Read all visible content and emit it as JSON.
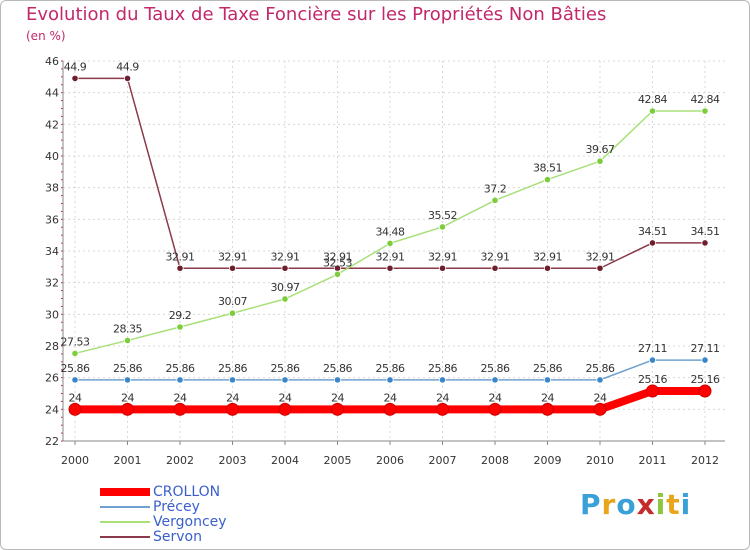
{
  "title": "Evolution du Taux de Taxe Foncière sur les Propriétés Non Bâties",
  "unit_label": "(en %)",
  "logo": {
    "text": "Proxiti",
    "letters": [
      {
        "ch": "P",
        "color": "#3aa0d8"
      },
      {
        "ch": "r",
        "color": "#e8a61c"
      },
      {
        "ch": "o",
        "color": "#3aa0d8"
      },
      {
        "ch": "x",
        "color": "#c52b2b"
      },
      {
        "ch": "i",
        "color": "#8cc63f"
      },
      {
        "ch": "t",
        "color": "#e8a61c"
      },
      {
        "ch": "i",
        "color": "#3aa0d8"
      }
    ]
  },
  "chart_data": {
    "type": "line",
    "title": "Evolution du Taux de Taxe Foncière sur les Propriétés Non Bâties",
    "ylabel": "(en %)",
    "xlabel": "",
    "categories": [
      "2000",
      "2001",
      "2002",
      "2003",
      "2004",
      "2005",
      "2006",
      "2007",
      "2008",
      "2009",
      "2010",
      "2011",
      "2012"
    ],
    "ylim": [
      22,
      46
    ],
    "yticks": [
      22,
      24,
      26,
      28,
      30,
      32,
      34,
      36,
      38,
      40,
      42,
      44,
      46
    ],
    "grid": true,
    "legend_position": "bottom-left",
    "series": [
      {
        "name": "CROLLON",
        "color": "#ff0000",
        "marker_color": "#ff0000",
        "values": [
          24,
          24,
          24,
          24,
          24,
          24,
          24,
          24,
          24,
          24,
          24,
          25.16,
          25.16
        ],
        "labels": [
          "24",
          "24",
          "24",
          "24",
          "24",
          "24",
          "24",
          "24",
          "24",
          "24",
          "24",
          "25.16",
          "25.16"
        ]
      },
      {
        "name": "Précey",
        "color": "#6fa1d0",
        "marker_color": "#3a86c8",
        "values": [
          25.86,
          25.86,
          25.86,
          25.86,
          25.86,
          25.86,
          25.86,
          25.86,
          25.86,
          25.86,
          25.86,
          27.11,
          27.11
        ],
        "labels": [
          "25.86",
          "25.86",
          "25.86",
          "25.86",
          "25.86",
          "25.86",
          "25.86",
          "25.86",
          "25.86",
          "25.86",
          "25.86",
          "27.11",
          "27.11"
        ]
      },
      {
        "name": "Vergoncey",
        "color": "#a8e07a",
        "marker_color": "#7ccc3c",
        "values": [
          27.53,
          28.35,
          29.2,
          30.07,
          30.97,
          32.53,
          34.48,
          35.52,
          37.2,
          38.51,
          39.67,
          42.84,
          42.84
        ],
        "labels": [
          "27.53",
          "28.35",
          "29.2",
          "30.07",
          "30.97",
          "32.53",
          "34.48",
          "35.52",
          "37.2",
          "38.51",
          "39.67",
          "42.84",
          "42.84"
        ]
      },
      {
        "name": "Servon",
        "color": "#8a3a4a",
        "marker_color": "#6e1f2e",
        "values": [
          44.9,
          44.9,
          32.91,
          32.91,
          32.91,
          32.91,
          32.91,
          32.91,
          32.91,
          32.91,
          32.91,
          34.51,
          34.51
        ],
        "labels": [
          "44.9",
          "44.9",
          "32.91",
          "32.91",
          "32.91",
          "32.91",
          "32.91",
          "32.91",
          "32.91",
          "32.91",
          "32.91",
          "34.51",
          "34.51"
        ]
      }
    ]
  }
}
